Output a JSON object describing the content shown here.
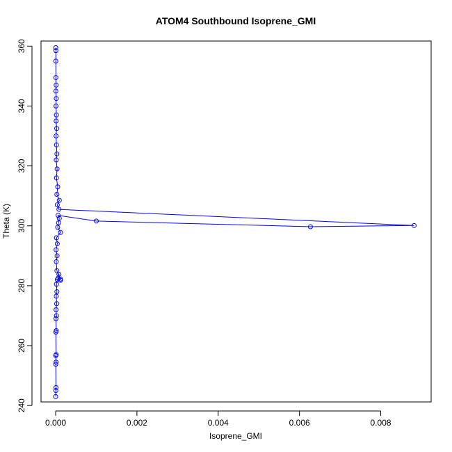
{
  "chart_data": {
    "type": "scatter",
    "title": "ATOM4 Southbound Isoprene_GMI",
    "xlabel": "Isoprene_GMI",
    "ylabel": "Theta (K)",
    "xlim": [
      -0.00036,
      0.00924
    ],
    "ylim": [
      241.2,
      361.7
    ],
    "x_ticks": [
      0.0,
      0.002,
      0.004,
      0.006,
      0.008
    ],
    "x_tick_labels": [
      "0.000",
      "0.002",
      "0.004",
      "0.006",
      "0.008"
    ],
    "y_ticks": [
      240,
      260,
      280,
      300,
      320,
      340,
      360
    ],
    "y_tick_labels": [
      "240",
      "260",
      "280",
      "300",
      "320",
      "340",
      "360"
    ],
    "grid": false,
    "marker": "open-circle",
    "color": "#0000ff",
    "series": [
      {
        "name": "",
        "points": [
          {
            "x": 0.0,
            "y": 243.0
          },
          {
            "x": 5e-06,
            "y": 245.0
          },
          {
            "x": 8e-06,
            "y": 246.0
          },
          {
            "x": 3e-06,
            "y": 253.8
          },
          {
            "x": 1e-05,
            "y": 254.5
          },
          {
            "x": 2e-06,
            "y": 256.7
          },
          {
            "x": 1.2e-05,
            "y": 257.0
          },
          {
            "x": 5e-06,
            "y": 264.5
          },
          {
            "x": 1.5e-05,
            "y": 265.0
          },
          {
            "x": 8e-06,
            "y": 269.0
          },
          {
            "x": 2e-05,
            "y": 270.0
          },
          {
            "x": 1e-05,
            "y": 272.0
          },
          {
            "x": 2.5e-05,
            "y": 274.0
          },
          {
            "x": 1.5e-05,
            "y": 276.5
          },
          {
            "x": 3e-05,
            "y": 278.0
          },
          {
            "x": 2e-05,
            "y": 280.5
          },
          {
            "x": 4e-05,
            "y": 282.0
          },
          {
            "x": 6e-05,
            "y": 282.5
          },
          {
            "x": 8e-05,
            "y": 283.8
          },
          {
            "x": 0.00012,
            "y": 282.2
          },
          {
            "x": 0.00012,
            "y": 281.8
          },
          {
            "x": 3e-05,
            "y": 285.0
          },
          {
            "x": 1.5e-05,
            "y": 288.0
          },
          {
            "x": 3.5e-05,
            "y": 290.0
          },
          {
            "x": 1e-05,
            "y": 292.0
          },
          {
            "x": 4e-05,
            "y": 294.0
          },
          {
            "x": 2e-05,
            "y": 296.0
          },
          {
            "x": 0.00012,
            "y": 297.8
          },
          {
            "x": 5e-05,
            "y": 299.5
          },
          {
            "x": 7e-05,
            "y": 301.0
          },
          {
            "x": 9e-05,
            "y": 302.5
          },
          {
            "x": 6e-05,
            "y": 303.5
          },
          {
            "x": 0.001,
            "y": 301.6
          },
          {
            "x": 0.00627,
            "y": 299.7
          },
          {
            "x": 0.00882,
            "y": 300.1
          },
          {
            "x": 8e-05,
            "y": 305.5
          },
          {
            "x": 4e-05,
            "y": 307.0
          },
          {
            "x": 9e-05,
            "y": 308.5
          },
          {
            "x": 3e-05,
            "y": 310.5
          },
          {
            "x": 5e-05,
            "y": 313.0
          },
          {
            "x": 2e-05,
            "y": 316.0
          },
          {
            "x": 3.5e-05,
            "y": 319.0
          },
          {
            "x": 1.5e-05,
            "y": 322.0
          },
          {
            "x": 3e-05,
            "y": 324.0
          },
          {
            "x": 2e-05,
            "y": 327.0
          },
          {
            "x": 1e-05,
            "y": 330.0
          },
          {
            "x": 2.5e-05,
            "y": 332.5
          },
          {
            "x": 1.2e-05,
            "y": 335.0
          },
          {
            "x": 1.8e-05,
            "y": 337.0
          },
          {
            "x": 8e-06,
            "y": 340.0
          },
          {
            "x": 1.5e-05,
            "y": 342.5
          },
          {
            "x": 5e-06,
            "y": 345.0
          },
          {
            "x": 1.2e-05,
            "y": 347.0
          },
          {
            "x": 6e-06,
            "y": 349.5
          },
          {
            "x": 4e-06,
            "y": 355.0
          },
          {
            "x": 6e-06,
            "y": 358.5
          },
          {
            "x": 3e-06,
            "y": 359.5
          }
        ]
      }
    ]
  }
}
